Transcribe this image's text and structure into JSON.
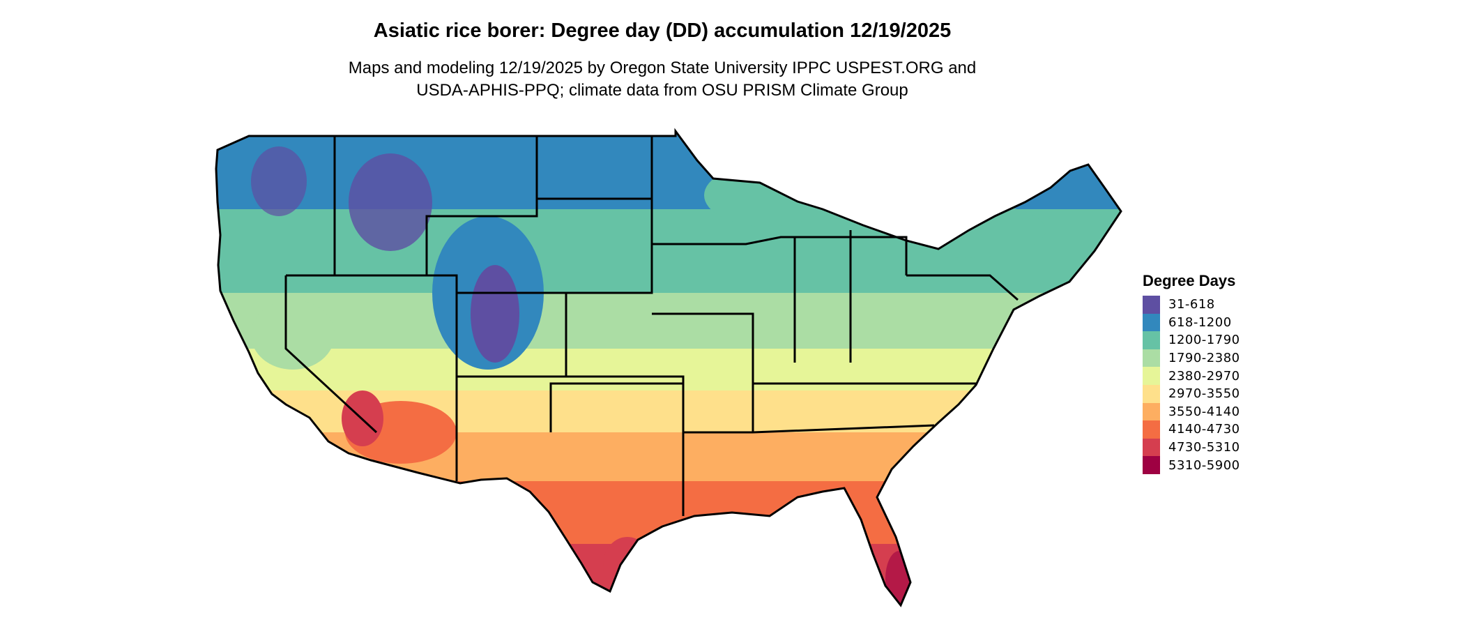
{
  "title": "Asiatic rice borer: Degree day (DD) accumulation 12/19/2025",
  "subtitle_line1": "Maps and modeling 12/19/2025 by Oregon State University IPPC USPEST.ORG and",
  "subtitle_line2": "USDA-APHIS-PPQ; climate data from OSU PRISM Climate Group",
  "legend": {
    "title": "Degree Days",
    "items": [
      {
        "label": "31-618",
        "color": "#5e4fa2"
      },
      {
        "label": "618-1200",
        "color": "#3288bd"
      },
      {
        "label": "1200-1790",
        "color": "#66c2a5"
      },
      {
        "label": "1790-2380",
        "color": "#abdda4"
      },
      {
        "label": "2380-2970",
        "color": "#e6f598"
      },
      {
        "label": "2970-3550",
        "color": "#fee08b"
      },
      {
        "label": "3550-4140",
        "color": "#fdae61"
      },
      {
        "label": "4140-4730",
        "color": "#f46d43"
      },
      {
        "label": "4730-5310",
        "color": "#d53e4f"
      },
      {
        "label": "5310-5900",
        "color": "#9e0142"
      }
    ]
  },
  "map": {
    "region": "Contiguous United States",
    "boundary_color": "#000000"
  }
}
